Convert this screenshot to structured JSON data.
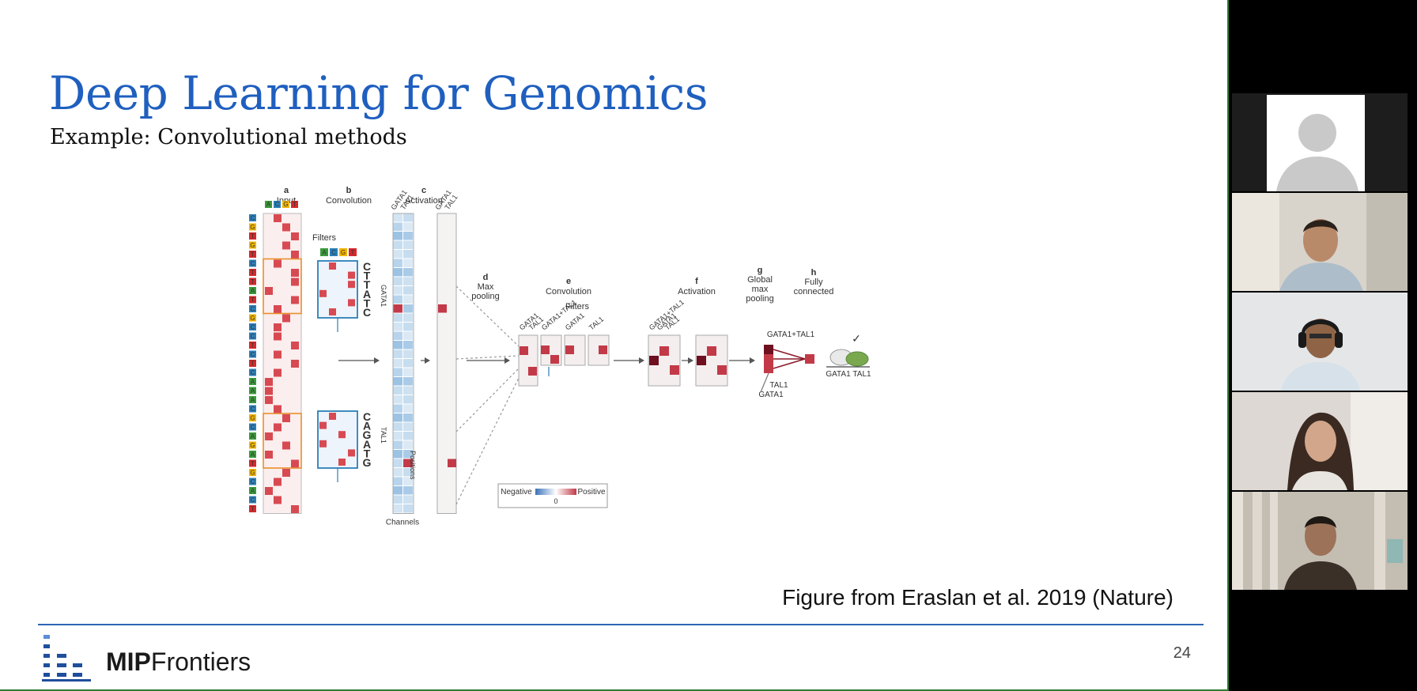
{
  "slide": {
    "title": "Deep Learning for Genomics",
    "subtitle": "Example: Convolutional methods",
    "caption": "Figure from Eraslan et al. 2019 (Nature)",
    "page_number": "24",
    "logo": {
      "bold": "MIP",
      "regular": "Frontiers"
    }
  },
  "figure": {
    "panels": [
      {
        "letter": "a",
        "name": "Input"
      },
      {
        "letter": "b",
        "name": "Convolution"
      },
      {
        "letter": "c",
        "name": "Activation"
      },
      {
        "letter": "d",
        "name": "Max pooling"
      },
      {
        "letter": "e",
        "name": "Convolution"
      },
      {
        "letter": "f",
        "name": "Activation"
      },
      {
        "letter": "g",
        "name": "Global max pooling"
      },
      {
        "letter": "h",
        "name": "Fully connected"
      }
    ],
    "bases": [
      "A",
      "C",
      "G",
      "T"
    ],
    "sequence": "CGTGTCTTATCGCCTCTCAAACGCAGATGCACT",
    "labels": {
      "filters_1": "Filters",
      "filters_2": "Filters",
      "motif_gata1": "CTTATC",
      "motif_tal1": "CAGATG",
      "gata1": "GATA1",
      "tal1": "TAL1",
      "gata1_tal1": "GATA1+TAL1",
      "positions": "Positions",
      "channels": "Channels",
      "legend_negative": "Negative",
      "legend_positive": "Positive",
      "legend_zero": "0",
      "check": "✓"
    },
    "colors": {
      "A": "#3a9a3a",
      "C": "#2a7fb8",
      "G": "#f0b400",
      "T": "#d6282b",
      "positive": "#c23a48",
      "negative": "#3a72b8"
    }
  },
  "participants": [
    {
      "name": "participant-1",
      "type": "avatar-placeholder"
    },
    {
      "name": "participant-2",
      "type": "video"
    },
    {
      "name": "participant-3",
      "type": "video"
    },
    {
      "name": "participant-4",
      "type": "video"
    },
    {
      "name": "participant-5",
      "type": "video"
    }
  ]
}
